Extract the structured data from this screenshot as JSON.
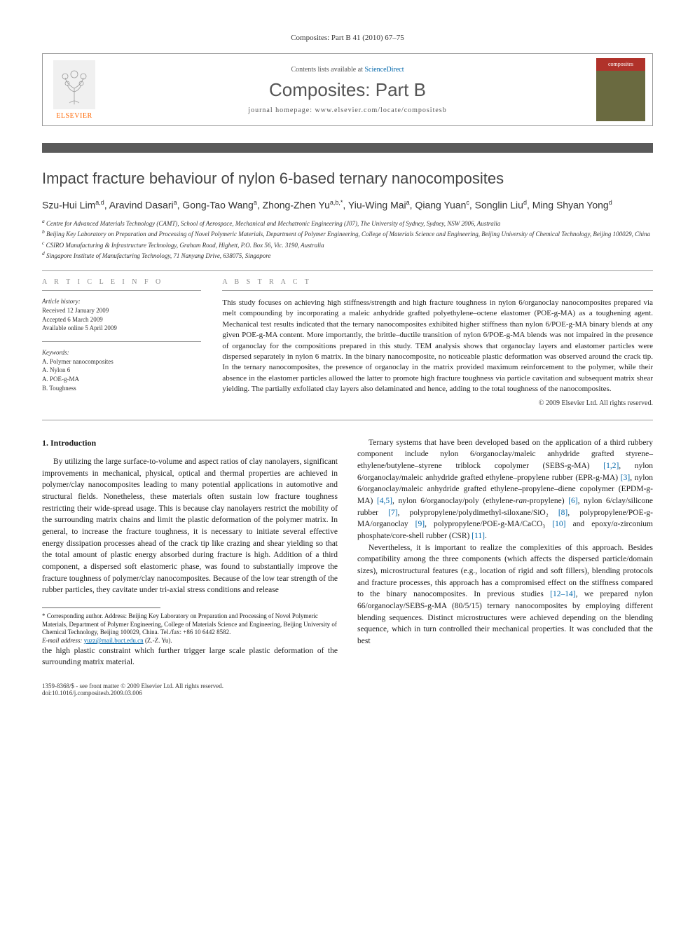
{
  "citation": "Composites: Part B 41 (2010) 67–75",
  "header": {
    "contents_prefix": "Contents lists available at ",
    "contents_link": "ScienceDirect",
    "journal_name": "Composites: Part B",
    "homepage_prefix": "journal homepage: ",
    "homepage_url": "www.elsevier.com/locate/compositesb",
    "publisher": "ELSEVIER",
    "cover_label": "composites"
  },
  "article": {
    "title": "Impact fracture behaviour of nylon 6-based ternary nanocomposites",
    "authors_html": "Szu-Hui Lim<sup>a,d</sup>, Aravind Dasari<sup>a</sup>, Gong-Tao Wang<sup>a</sup>, Zhong-Zhen Yu<sup>a,b,*</sup>, Yiu-Wing Mai<sup>a</sup>, Qiang Yuan<sup>c</sup>, Songlin Liu<sup>d</sup>, Ming Shyan Yong<sup>d</sup>",
    "affiliations": [
      "a Centre for Advanced Materials Technology (CAMT), School of Aerospace, Mechanical and Mechatronic Engineering (J07), The University of Sydney, Sydney, NSW 2006, Australia",
      "b Beijing Key Laboratory on Preparation and Processing of Novel Polymeric Materials, Department of Polymer Engineering, College of Materials Science and Engineering, Beijing University of Chemical Technology, Beijing 100029, China",
      "c CSIRO Manufacturing & Infrastructure Technology, Graham Road, Highett, P.O. Box 56, Vic. 3190, Australia",
      "d Singapore Institute of Manufacturing Technology, 71 Nanyang Drive, 638075, Singapore"
    ]
  },
  "info": {
    "heading": "A R T I C L E   I N F O",
    "history_label": "Article history:",
    "history": [
      "Received 12 January 2009",
      "Accepted 6 March 2009",
      "Available online 5 April 2009"
    ],
    "keywords_label": "Keywords:",
    "keywords": [
      "A. Polymer nanocomposites",
      "A. Nylon 6",
      "A. POE-g-MA",
      "B. Toughness"
    ]
  },
  "abstract": {
    "heading": "A B S T R A C T",
    "text": "This study focuses on achieving high stiffness/strength and high fracture toughness in nylon 6/organoclay nanocomposites prepared via melt compounding by incorporating a maleic anhydride grafted polyethylene–octene elastomer (POE-g-MA) as a toughening agent. Mechanical test results indicated that the ternary nanocomposites exhibited higher stiffness than nylon 6/POE-g-MA binary blends at any given POE-g-MA content. More importantly, the brittle–ductile transition of nylon 6/POE-g-MA blends was not impaired in the presence of organoclay for the compositions prepared in this study. TEM analysis shows that organoclay layers and elastomer particles were dispersed separately in nylon 6 matrix. In the binary nanocomposite, no noticeable plastic deformation was observed around the crack tip. In the ternary nanocomposites, the presence of organoclay in the matrix provided maximum reinforcement to the polymer, while their absence in the elastomer particles allowed the latter to promote high fracture toughness via particle cavitation and subsequent matrix shear yielding. The partially exfoliated clay layers also delaminated and hence, adding to the total toughness of the nanocomposites.",
    "copyright": "© 2009 Elsevier Ltd. All rights reserved."
  },
  "body": {
    "section1_heading": "1. Introduction",
    "p1": "By utilizing the large surface-to-volume and aspect ratios of clay nanolayers, significant improvements in mechanical, physical, optical and thermal properties are achieved in polymer/clay nanocomposites leading to many potential applications in automotive and structural fields. Nonetheless, these materials often sustain low fracture toughness restricting their wide-spread usage. This is because clay nanolayers restrict the mobility of the surrounding matrix chains and limit the plastic deformation of the polymer matrix. In general, to increase the fracture toughness, it is necessary to initiate several effective energy dissipation processes ahead of the crack tip like crazing and shear yielding so that the total amount of plastic energy absorbed during fracture is high. Addition of a third component, a dispersed soft elastomeric phase, was found to substantially improve the fracture toughness of polymer/clay nanocomposites. Because of the low tear strength of the rubber particles, they cavitate under tri-axial stress conditions and release",
    "p2": "the high plastic constraint which further trigger large scale plastic deformation of the surrounding matrix material.",
    "p3_pre": "Ternary systems that have been developed based on the application of a third rubbery component include nylon 6/organoclay/maleic anhydride grafted styrene–ethylene/butylene–styrene triblock copolymer (SEBS-g-MA) ",
    "p3_r1": "[1,2]",
    "p3_m1": ", nylon 6/organoclay/maleic anhydride grafted ethylene–propylene rubber (EPR-g-MA) ",
    "p3_r2": "[3]",
    "p3_m2": ", nylon 6/organoclay/maleic anhydride grafted ethylene–propylene–diene copolymer (EPDM-g-MA) ",
    "p3_r3": "[4,5]",
    "p3_m3": ", nylon 6/organoclay/poly (ethylene-",
    "p3_i1": "ran",
    "p3_m4": "-propylene) ",
    "p3_r4": "[6]",
    "p3_m5": ", nylon 6/clay/silicone rubber ",
    "p3_r5": "[7]",
    "p3_m6": ", polypropylene/polydimethyl-siloxane/SiO₂ ",
    "p3_r6": "[8]",
    "p3_m7": ", polypropylene/POE-g-MA/organoclay ",
    "p3_r7": "[9]",
    "p3_m8": ", polypropylene/POE-g-MA/CaCO₃ ",
    "p3_r8": "[10]",
    "p3_m9": " and epoxy/α-zirconium phosphate/core-shell rubber (CSR) ",
    "p3_r9": "[11]",
    "p3_end": ".",
    "p4_pre": "Nevertheless, it is important to realize the complexities of this approach. Besides compatibility among the three components (which affects the dispersed particle/domain sizes), microstructural features (e.g., location of rigid and soft fillers), blending protocols and fracture processes, this approach has a compromised effect on the stiffness compared to the binary nanocomposites. In previous studies ",
    "p4_r1": "[12–14]",
    "p4_post": ", we prepared nylon 66/organoclay/SEBS-g-MA (80/5/15) ternary nanocomposites by employing different blending sequences. Distinct microstructures were achieved depending on the blending sequence, which in turn controlled their mechanical properties. It was concluded that the best"
  },
  "footnote": {
    "corr": "* Corresponding author. Address: Beijing Key Laboratory on Preparation and Processing of Novel Polymeric Materials, Department of Polymer Engineering, College of Materials Science and Engineering, Beijing University of Chemical Technology, Beijing 100029, China. Tel./fax: +86 10 6442 8582.",
    "email_label": "E-mail address: ",
    "email": "yuzz@mail.buct.edu.cn",
    "email_suffix": " (Z.-Z. Yu)."
  },
  "footer": {
    "left_l1": "1359-8368/$ - see front matter © 2009 Elsevier Ltd. All rights reserved.",
    "left_l2": "doi:10.1016/j.compositesb.2009.03.006"
  }
}
